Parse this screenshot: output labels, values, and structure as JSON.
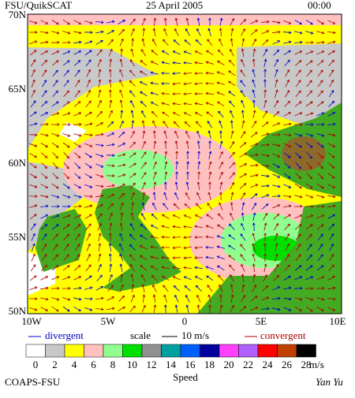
{
  "header": {
    "title": "FSU/QuikSCAT",
    "date": "25 April 2005",
    "time": "00:00"
  },
  "map": {
    "lat_labels": [
      "70N",
      "65N",
      "60N",
      "55N",
      "50N"
    ],
    "lon_labels": [
      "10W",
      "5W",
      "0",
      "5E",
      "10E"
    ]
  },
  "legend": {
    "divergent": "divergent",
    "scale": "scale",
    "scale_value": "10 m/s",
    "convergent": "convergent",
    "divergent_color": "#0000cc",
    "convergent_color": "#aa0000"
  },
  "colorbar": {
    "labels": [
      "0",
      "2",
      "4",
      "6",
      "8",
      "10",
      "12",
      "14",
      "16",
      "18",
      "20",
      "22",
      "24",
      "26",
      "28"
    ],
    "colors": [
      "#ffffff",
      "#c8c8c8",
      "#ffff00",
      "#ffc0c0",
      "#90ff90",
      "#00e000",
      "#909090",
      "#00a0a0",
      "#0060ff",
      "#0000a0",
      "#ff40ff",
      "#b060ff",
      "#ff0000",
      "#c04000",
      "#000000"
    ],
    "unit": "m/s",
    "title": "Speed"
  },
  "footer": {
    "left": "COAPS-FSU",
    "right": "Yan Yu"
  }
}
